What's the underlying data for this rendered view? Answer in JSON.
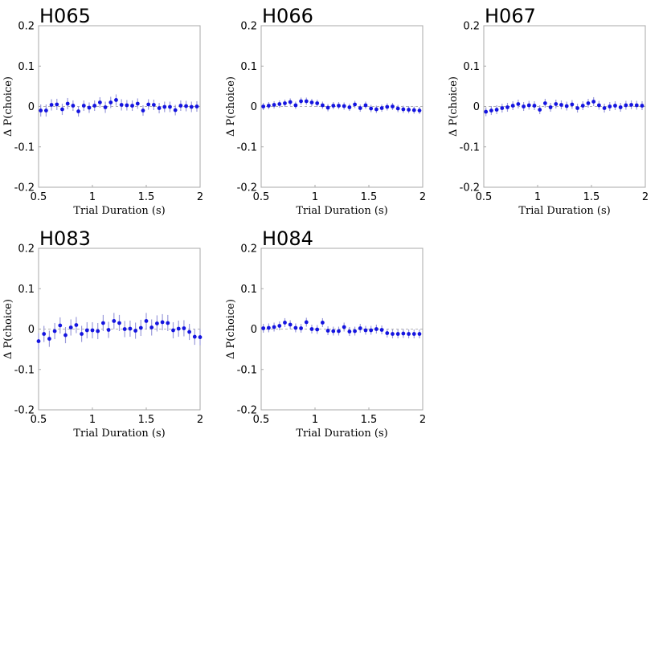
{
  "chart_data": [
    {
      "type": "scatter",
      "title": "H065",
      "xlabel": "Trial Duration (s)",
      "ylabel": "Δ P(choice)",
      "xlim": [
        0.5,
        2
      ],
      "ylim": [
        -0.2,
        0.2
      ],
      "xticks": [
        "0.5",
        "1",
        "1.5",
        "2"
      ],
      "yticks": [
        "-0.2",
        "-0.1",
        "0",
        "0.1",
        "0.2"
      ],
      "grid": false,
      "color": "#1414e0",
      "x": [
        0.52,
        0.57,
        0.62,
        0.67,
        0.72,
        0.77,
        0.82,
        0.87,
        0.92,
        0.97,
        1.02,
        1.07,
        1.12,
        1.17,
        1.22,
        1.27,
        1.32,
        1.37,
        1.42,
        1.47,
        1.52,
        1.57,
        1.62,
        1.67,
        1.72,
        1.77,
        1.82,
        1.87,
        1.92,
        1.97
      ],
      "y": [
        -0.01,
        -0.01,
        0.004,
        0.005,
        -0.007,
        0.007,
        0.002,
        -0.012,
        0.002,
        -0.003,
        0.002,
        0.01,
        -0.002,
        0.01,
        0.016,
        0.004,
        0.003,
        0.002,
        0.007,
        -0.01,
        0.005,
        0.004,
        -0.004,
        -0.001,
        -0.001,
        -0.009,
        0.002,
        0.001,
        -0.001,
        0.0
      ],
      "err": [
        0.015,
        0.015,
        0.014,
        0.014,
        0.014,
        0.014,
        0.013,
        0.013,
        0.013,
        0.013,
        0.013,
        0.013,
        0.014,
        0.014,
        0.014,
        0.014,
        0.013,
        0.013,
        0.013,
        0.013,
        0.013,
        0.013,
        0.013,
        0.013,
        0.013,
        0.013,
        0.013,
        0.013,
        0.013,
        0.013
      ]
    },
    {
      "type": "scatter",
      "title": "H066",
      "xlabel": "Trial Duration (s)",
      "ylabel": "Δ P(choice)",
      "xlim": [
        0.5,
        2
      ],
      "ylim": [
        -0.2,
        0.2
      ],
      "xticks": [
        "0.5",
        "1",
        "1.5",
        "2"
      ],
      "yticks": [
        "-0.2",
        "-0.1",
        "0",
        "0.1",
        "0.2"
      ],
      "grid": false,
      "color": "#1414e0",
      "x": [
        0.52,
        0.57,
        0.62,
        0.67,
        0.72,
        0.77,
        0.82,
        0.87,
        0.92,
        0.97,
        1.02,
        1.07,
        1.12,
        1.17,
        1.22,
        1.27,
        1.32,
        1.37,
        1.42,
        1.47,
        1.52,
        1.57,
        1.62,
        1.67,
        1.72,
        1.77,
        1.82,
        1.87,
        1.92,
        1.97
      ],
      "y": [
        0.0,
        0.002,
        0.004,
        0.006,
        0.008,
        0.011,
        0.003,
        0.013,
        0.013,
        0.01,
        0.008,
        0.003,
        -0.003,
        0.002,
        0.002,
        0.001,
        -0.002,
        0.005,
        -0.004,
        0.003,
        -0.005,
        -0.007,
        -0.004,
        -0.001,
        0.0,
        -0.005,
        -0.007,
        -0.008,
        -0.009,
        -0.01
      ],
      "err": [
        0.009,
        0.009,
        0.009,
        0.009,
        0.009,
        0.009,
        0.009,
        0.009,
        0.009,
        0.009,
        0.009,
        0.009,
        0.009,
        0.009,
        0.009,
        0.009,
        0.009,
        0.009,
        0.009,
        0.009,
        0.009,
        0.009,
        0.009,
        0.009,
        0.009,
        0.009,
        0.009,
        0.009,
        0.009,
        0.009
      ]
    },
    {
      "type": "scatter",
      "title": "H067",
      "xlabel": "Trial Duration (s)",
      "ylabel": "Δ P(choice)",
      "xlim": [
        0.5,
        2
      ],
      "ylim": [
        -0.2,
        0.2
      ],
      "xticks": [
        "0.5",
        "1",
        "1.5",
        "2"
      ],
      "yticks": [
        "-0.2",
        "-0.1",
        "0",
        "0.1",
        "0.2"
      ],
      "grid": false,
      "color": "#1414e0",
      "x": [
        0.52,
        0.57,
        0.62,
        0.67,
        0.72,
        0.77,
        0.82,
        0.87,
        0.92,
        0.97,
        1.02,
        1.07,
        1.12,
        1.17,
        1.22,
        1.27,
        1.32,
        1.37,
        1.42,
        1.47,
        1.52,
        1.57,
        1.62,
        1.67,
        1.72,
        1.77,
        1.82,
        1.87,
        1.92,
        1.97
      ],
      "y": [
        -0.013,
        -0.01,
        -0.008,
        -0.004,
        -0.002,
        0.002,
        0.006,
        0.0,
        0.003,
        0.002,
        -0.008,
        0.008,
        -0.002,
        0.006,
        0.004,
        0.001,
        0.005,
        -0.004,
        0.002,
        0.008,
        0.012,
        0.003,
        -0.004,
        0.0,
        0.002,
        -0.002,
        0.003,
        0.004,
        0.003,
        0.002
      ],
      "err": [
        0.011,
        0.011,
        0.011,
        0.011,
        0.011,
        0.011,
        0.011,
        0.011,
        0.011,
        0.011,
        0.011,
        0.011,
        0.011,
        0.011,
        0.011,
        0.011,
        0.011,
        0.011,
        0.011,
        0.011,
        0.011,
        0.011,
        0.011,
        0.011,
        0.011,
        0.011,
        0.011,
        0.011,
        0.011,
        0.011
      ]
    },
    {
      "type": "scatter",
      "title": "H083",
      "xlabel": "Trial Duration (s)",
      "ylabel": "Δ P(choice)",
      "xlim": [
        0.5,
        2
      ],
      "ylim": [
        -0.2,
        0.2
      ],
      "xticks": [
        "0.5",
        "1",
        "1.5",
        "2"
      ],
      "yticks": [
        "-0.2",
        "-0.1",
        "0",
        "0.1",
        "0.2"
      ],
      "grid": false,
      "color": "#1414e0",
      "x": [
        0.5,
        0.55,
        0.6,
        0.65,
        0.7,
        0.75,
        0.8,
        0.85,
        0.9,
        0.95,
        1.0,
        1.05,
        1.1,
        1.15,
        1.2,
        1.25,
        1.3,
        1.35,
        1.4,
        1.45,
        1.5,
        1.55,
        1.6,
        1.65,
        1.7,
        1.75,
        1.8,
        1.85,
        1.9,
        1.95,
        2.0
      ],
      "y": [
        -0.03,
        -0.012,
        -0.024,
        -0.005,
        0.009,
        -0.015,
        0.004,
        0.01,
        -0.012,
        -0.003,
        -0.003,
        -0.005,
        0.015,
        -0.002,
        0.02,
        0.015,
        0.0,
        0.001,
        -0.004,
        0.003,
        0.02,
        0.004,
        0.014,
        0.017,
        0.015,
        -0.003,
        0.001,
        0.002,
        -0.007,
        -0.019,
        -0.02
      ],
      "err": [
        0.02,
        0.02,
        0.02,
        0.02,
        0.02,
        0.02,
        0.02,
        0.02,
        0.02,
        0.02,
        0.02,
        0.02,
        0.02,
        0.02,
        0.02,
        0.02,
        0.02,
        0.02,
        0.02,
        0.02,
        0.02,
        0.02,
        0.02,
        0.02,
        0.02,
        0.02,
        0.02,
        0.02,
        0.02,
        0.02,
        0.02
      ]
    },
    {
      "type": "scatter",
      "title": "H084",
      "xlabel": "Trial Duration (s)",
      "ylabel": "Δ P(choice)",
      "xlim": [
        0.5,
        2
      ],
      "ylim": [
        -0.2,
        0.2
      ],
      "xticks": [
        "0.5",
        "1",
        "1.5",
        "2"
      ],
      "yticks": [
        "-0.2",
        "-0.1",
        "0",
        "0.1",
        "0.2"
      ],
      "grid": false,
      "color": "#1414e0",
      "x": [
        0.52,
        0.57,
        0.62,
        0.67,
        0.72,
        0.77,
        0.82,
        0.87,
        0.92,
        0.97,
        1.02,
        1.07,
        1.12,
        1.17,
        1.22,
        1.27,
        1.32,
        1.37,
        1.42,
        1.47,
        1.52,
        1.57,
        1.62,
        1.67,
        1.72,
        1.77,
        1.82,
        1.87,
        1.92,
        1.97
      ],
      "y": [
        0.002,
        0.003,
        0.005,
        0.008,
        0.016,
        0.011,
        0.003,
        0.002,
        0.017,
        0.0,
        -0.001,
        0.016,
        -0.004,
        -0.005,
        -0.005,
        0.005,
        -0.006,
        -0.005,
        0.002,
        -0.003,
        -0.003,
        0.0,
        -0.002,
        -0.01,
        -0.012,
        -0.012,
        -0.011,
        -0.012,
        -0.012,
        -0.012
      ],
      "err": [
        0.011,
        0.011,
        0.011,
        0.011,
        0.011,
        0.011,
        0.011,
        0.011,
        0.011,
        0.011,
        0.011,
        0.011,
        0.011,
        0.011,
        0.011,
        0.011,
        0.011,
        0.011,
        0.011,
        0.011,
        0.011,
        0.011,
        0.011,
        0.011,
        0.011,
        0.011,
        0.011,
        0.011,
        0.011,
        0.011
      ]
    }
  ]
}
